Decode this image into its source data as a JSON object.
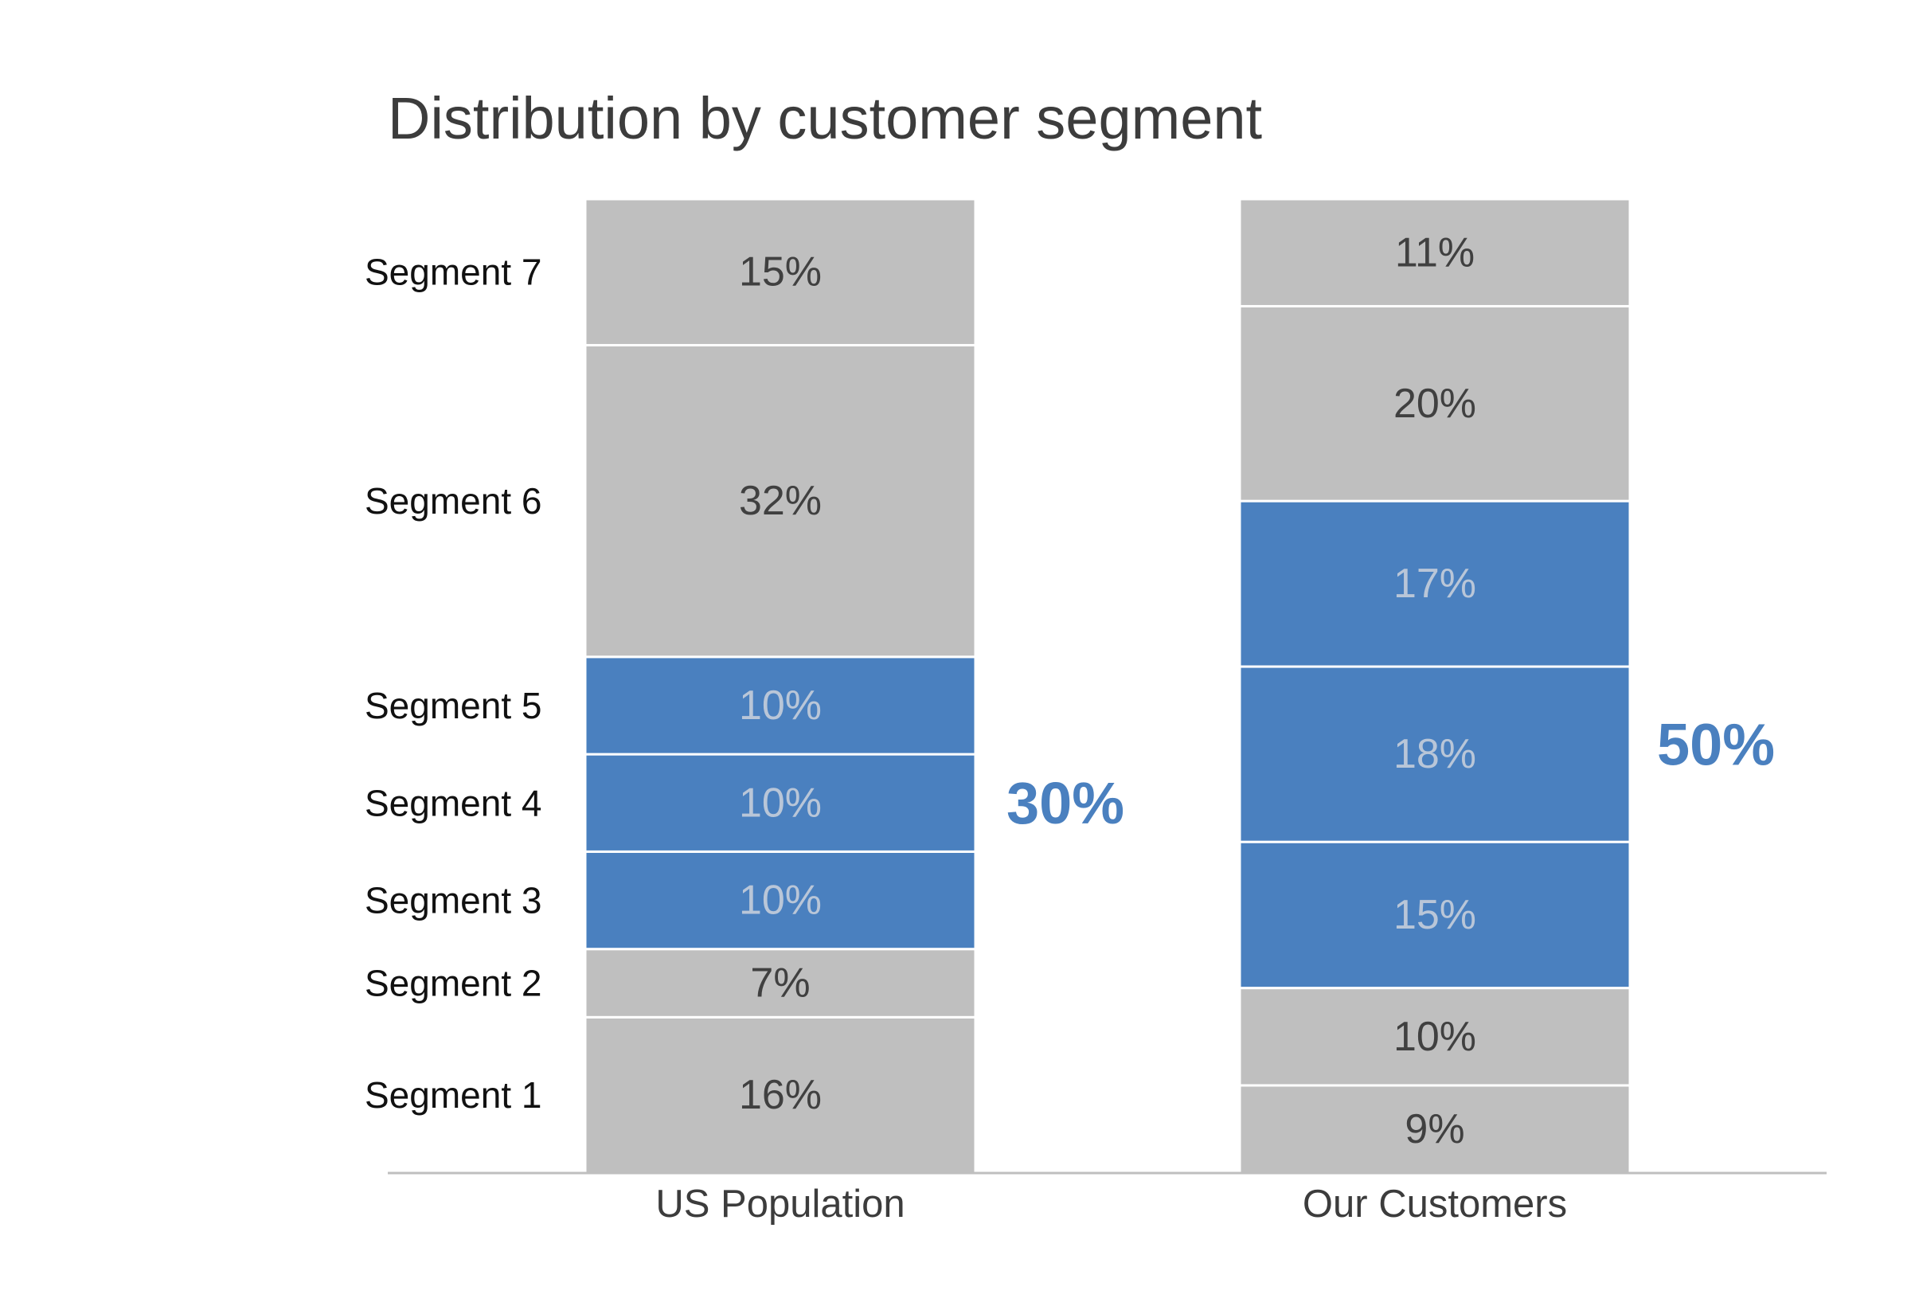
{
  "chart_data": {
    "type": "bar",
    "stacked": true,
    "normalized": true,
    "title": "Distribution by customer segment",
    "categories": [
      "US Population",
      "Our Customers"
    ],
    "series": [
      {
        "name": "Segment 1",
        "values": [
          16,
          9
        ],
        "labels": [
          "16%",
          "9%"
        ],
        "highlight": false
      },
      {
        "name": "Segment 2",
        "values": [
          7,
          10
        ],
        "labels": [
          "7%",
          "10%"
        ],
        "highlight": false
      },
      {
        "name": "Segment 3",
        "values": [
          10,
          15
        ],
        "labels": [
          "10%",
          "15%"
        ],
        "highlight": true
      },
      {
        "name": "Segment 4",
        "values": [
          10,
          18
        ],
        "labels": [
          "10%",
          "18%"
        ],
        "highlight": true
      },
      {
        "name": "Segment 5",
        "values": [
          10,
          17
        ],
        "labels": [
          "10%",
          "17%"
        ],
        "highlight": true
      },
      {
        "name": "Segment 6",
        "values": [
          32,
          20
        ],
        "labels": [
          "32%",
          "20%"
        ],
        "highlight": false
      },
      {
        "name": "Segment 7",
        "values": [
          15,
          11
        ],
        "labels": [
          "15%",
          "11%"
        ],
        "highlight": false
      }
    ],
    "highlight_totals": [
      "30%",
      "50%"
    ],
    "ylim": [
      0,
      100
    ],
    "grid": false,
    "legend": "left (segment labels aligned to first bar)",
    "colors": {
      "base": "#bfbfbf",
      "highlight": "#4a80bf",
      "base_text": "#404040",
      "highlight_text": "#b9c6d8",
      "total_text": "#4a80bf",
      "axis": "#bfbfbf",
      "separator": "#ffffff"
    }
  }
}
